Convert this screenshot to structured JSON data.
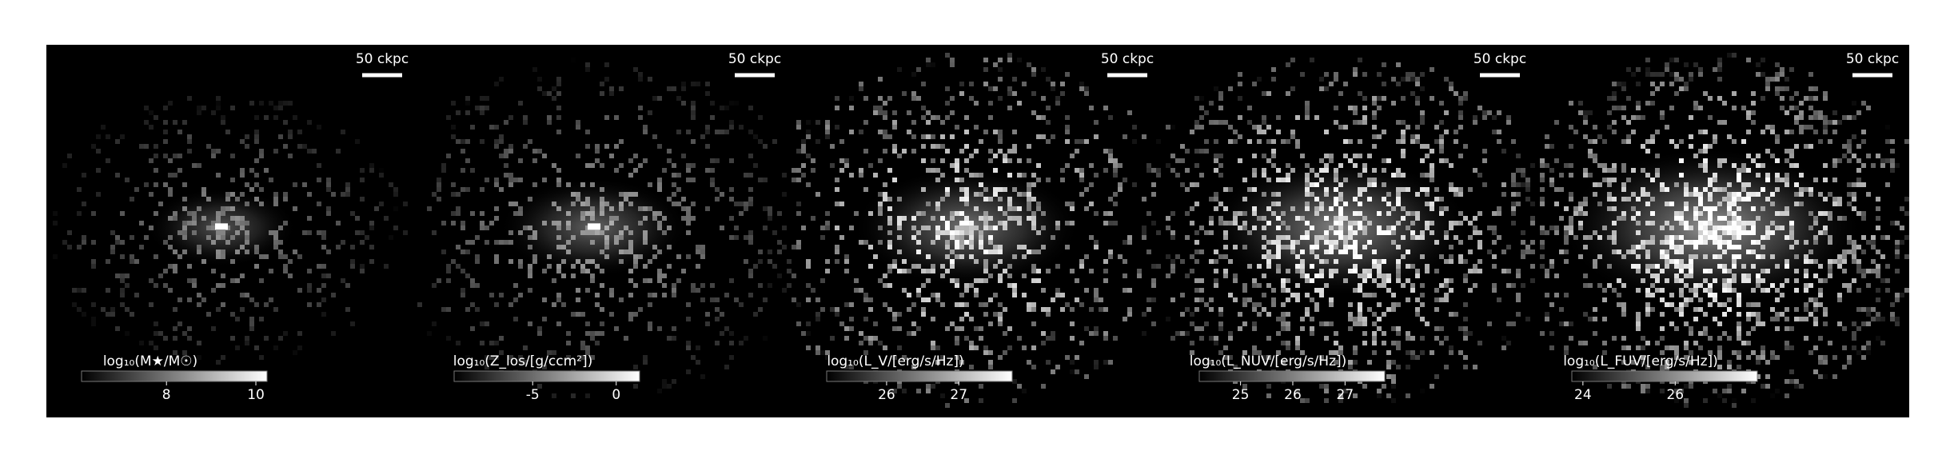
{
  "panels": [
    {
      "scale_label": "50 ckpc",
      "colorbar": {
        "label": "log₁₀(M★/M☉)",
        "clim": [
          6.1,
          10.25
        ],
        "ticks": [
          8,
          10
        ]
      }
    },
    {
      "scale_label": "50 ckpc",
      "colorbar": {
        "label": "log₁₀(Z_los/[g/ccm²])",
        "clim": [
          -9.7,
          1.4
        ],
        "ticks": [
          -5,
          0
        ]
      }
    },
    {
      "scale_label": "50 ckpc",
      "colorbar": {
        "label": "log₁₀(L_V/[erg/s/Hz])",
        "clim": [
          25.17,
          27.74
        ],
        "ticks": [
          26,
          27
        ]
      }
    },
    {
      "scale_label": "50 ckpc",
      "colorbar": {
        "label": "log₁₀(L_NUV/[erg/s/Hz])",
        "clim": [
          24.21,
          27.76
        ],
        "ticks": [
          25,
          26,
          27
        ]
      }
    },
    {
      "scale_label": "50 ckpc",
      "colorbar": {
        "label": "log₁₀(L_FUV/[erg/s/Hz])",
        "clim": [
          23.76,
          27.78
        ],
        "ticks": [
          24,
          26
        ]
      }
    }
  ]
}
